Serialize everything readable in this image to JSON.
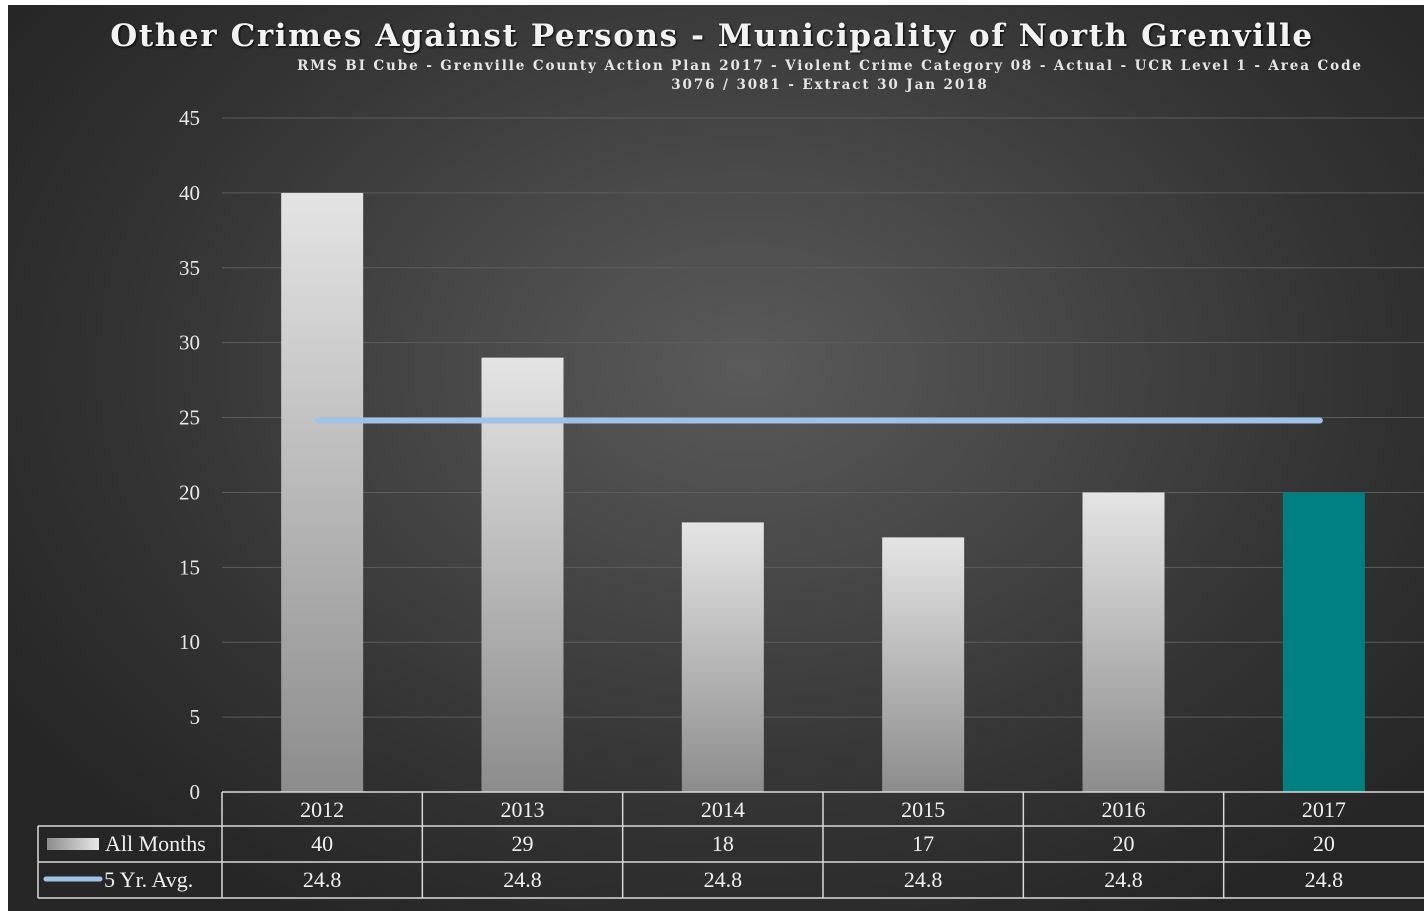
{
  "chart_data": {
    "type": "bar",
    "title": "Other Crimes Against Persons - Municipality of North Grenville",
    "subtitle": "RMS BI Cube - Grenville County Action Plan 2017 - Violent Crime Category 08 - Actual - UCR Level 1 - Area Code 3076 / 3081 - Extract 30 Jan 2018",
    "categories": [
      "2012",
      "2013",
      "2014",
      "2015",
      "2016",
      "2017"
    ],
    "series": [
      {
        "name": "All Months",
        "type": "bar",
        "values": [
          40,
          29,
          18,
          17,
          20,
          20
        ]
      },
      {
        "name": "5 Yr. Avg.",
        "type": "line",
        "values": [
          24.8,
          24.8,
          24.8,
          24.8,
          24.8,
          24.8
        ]
      }
    ],
    "table_values": {
      "All Months": [
        "40",
        "29",
        "18",
        "17",
        "20",
        "20"
      ],
      "5 Yr. Avg.": [
        "24.8",
        "24.8",
        "24.8",
        "24.8",
        "24.8",
        "24.8"
      ]
    },
    "yticks": [
      0,
      5,
      10,
      15,
      20,
      25,
      30,
      35,
      40,
      45
    ],
    "ylim": [
      0,
      45
    ],
    "grid": true,
    "legend": "data-table",
    "colors": {
      "bar_light": "#e4e4e4",
      "bar_dark": "#8c8c8c",
      "highlight_bar": "#008080",
      "avg_line": "#9dc3e6",
      "grid": "#5c5c5c",
      "table_border": "#d9d9d9"
    }
  }
}
